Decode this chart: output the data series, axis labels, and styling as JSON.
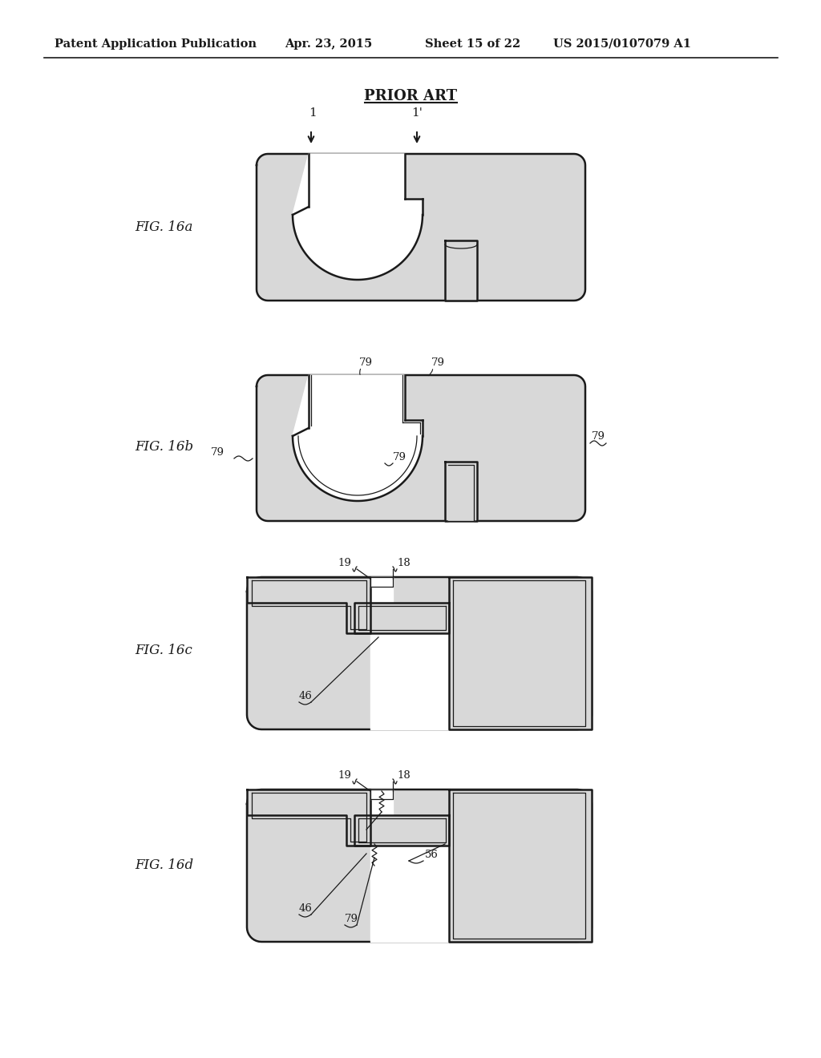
{
  "title_header": "Patent Application Publication",
  "date": "Apr. 23, 2015",
  "sheet": "Sheet 15 of 22",
  "patent_num": "US 2015/0107079 A1",
  "prior_art_label": "PRIOR ART",
  "fig_labels": [
    "FIG. 16a",
    "FIG. 16b",
    "FIG. 16c",
    "FIG. 16d"
  ],
  "bg_color": "#ffffff",
  "line_color": "#1a1a1a",
  "fill_color": "#d8d8d8",
  "panel_fill": "#d8d8d8",
  "white": "#ffffff"
}
